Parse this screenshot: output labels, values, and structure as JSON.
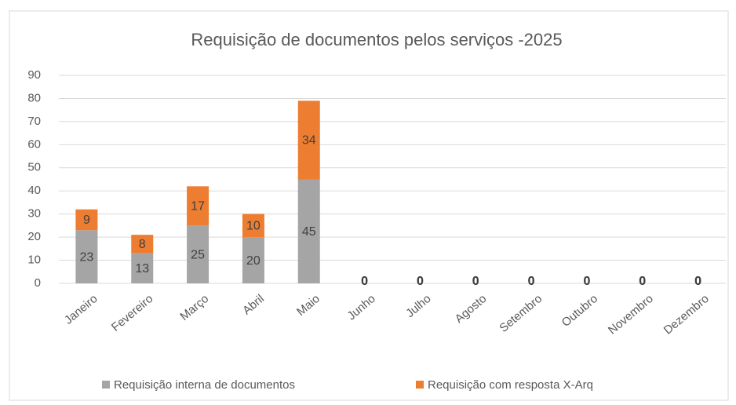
{
  "chart_data": {
    "type": "stacked_bar",
    "title": "Requisição de documentos pelos serviços -2025",
    "categories": [
      "Janeiro",
      "Fevereiro",
      "Março",
      "Abril",
      "Maio",
      "Junho",
      "Julho",
      "Agosto",
      "Setembro",
      "Outubro",
      "Novembro",
      "Dezembro"
    ],
    "series": [
      {
        "name": "Requisição interna de documentos",
        "color": "#a5a5a5",
        "values": [
          23,
          13,
          25,
          20,
          45,
          0,
          0,
          0,
          0,
          0,
          0,
          0
        ]
      },
      {
        "name": "Requisição com resposta X-Arq",
        "color": "#ed7d31",
        "values": [
          9,
          8,
          17,
          10,
          34,
          0,
          0,
          0,
          0,
          0,
          0,
          0
        ]
      }
    ],
    "ylim": [
      0,
      90
    ],
    "yticks": [
      0,
      10,
      20,
      30,
      40,
      50,
      60,
      70,
      80,
      90
    ],
    "grid": true,
    "legend": "bottom"
  }
}
